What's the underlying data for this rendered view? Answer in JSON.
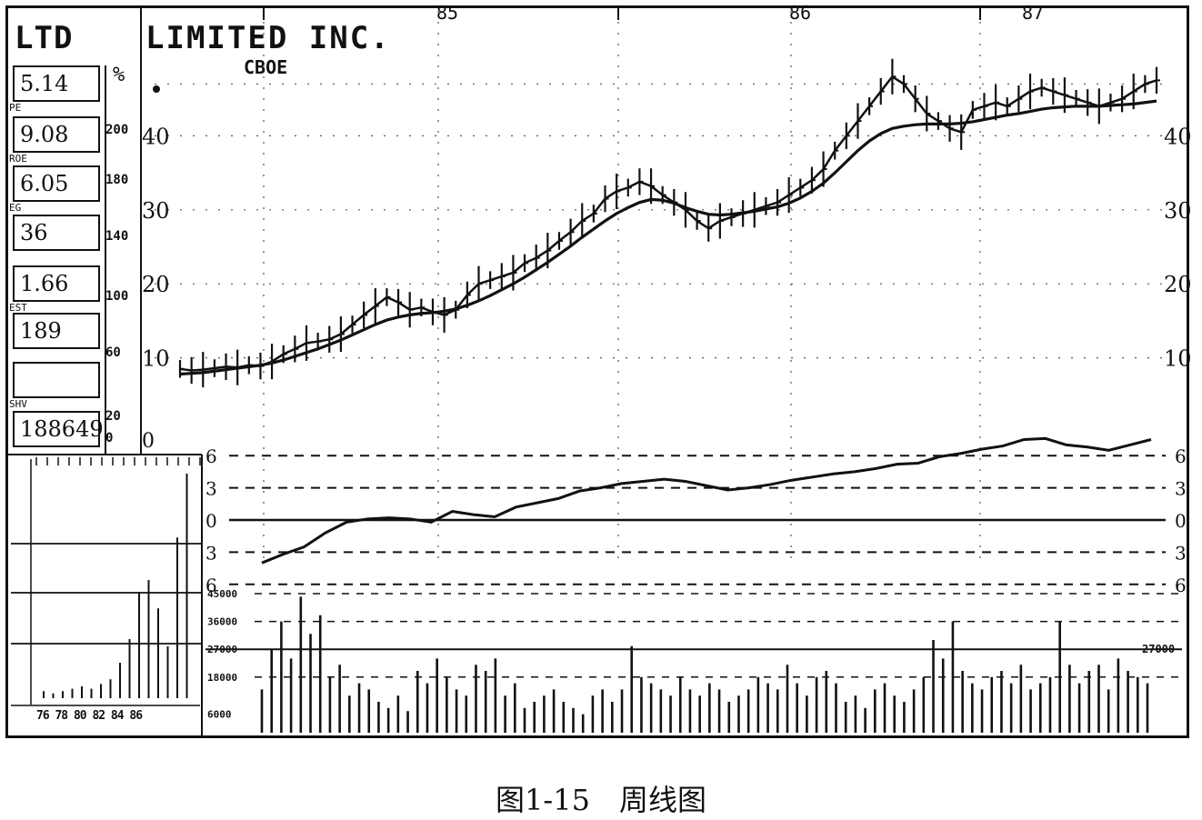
{
  "header": {
    "ticker": "LTD",
    "company": "LIMITED INC.",
    "exchange": "CBOE",
    "pct_symbol": "%"
  },
  "stats": [
    {
      "value": "5.14",
      "tag": "PE"
    },
    {
      "value": "9.08",
      "tag": "ROE"
    },
    {
      "value": "6.05",
      "tag": "EG"
    },
    {
      "value": "36",
      "tag": ""
    },
    {
      "value": "1.66",
      "tag": "EST"
    },
    {
      "value": "189",
      "tag": ""
    },
    {
      "value": "",
      "tag": "SHV"
    },
    {
      "value": "188649",
      "tag": ""
    }
  ],
  "left_scale": [
    "200",
    "180",
    "140",
    "100",
    "60",
    "20",
    "0"
  ],
  "inset_years": "76 78 80 82 84 86",
  "x_year_labels": [
    "85",
    "86",
    "87"
  ],
  "caption": "图1-15　周线图",
  "chart_data": [
    {
      "type": "line",
      "title": "",
      "xlabel": "",
      "ylabel": "",
      "ylim": [
        0,
        50
      ],
      "y_ticks": [
        10,
        20,
        30,
        40
      ],
      "grid": true,
      "x_labels": [
        "85",
        "86",
        "87"
      ],
      "x": [
        0,
        2,
        4,
        6,
        8,
        10,
        12,
        14,
        16,
        18,
        20,
        22,
        24,
        26,
        28,
        30,
        32,
        34,
        36,
        38,
        40,
        42,
        44,
        46,
        48,
        50,
        52,
        54,
        56,
        58,
        60,
        62,
        64,
        66,
        68,
        70,
        72,
        74,
        76,
        78,
        80,
        82,
        84,
        86,
        88,
        90,
        92,
        94,
        96,
        98,
        100,
        102,
        104,
        106,
        108,
        110,
        112,
        114,
        116,
        118,
        120,
        122,
        124,
        126,
        128,
        130,
        132,
        134,
        136,
        138,
        140,
        142,
        144,
        146,
        148,
        150,
        152,
        154,
        156,
        158,
        160,
        162,
        164,
        166,
        168,
        170
      ],
      "series": [
        {
          "values": [
            8.5,
            8.3,
            8.4,
            8.6,
            8.8,
            8.7,
            9.0,
            8.9,
            9.5,
            10.5,
            11.2,
            12.0,
            12.2,
            12.5,
            13.2,
            14.5,
            15.8,
            17.0,
            18.2,
            17.5,
            16.5,
            16.8,
            16.2,
            15.8,
            16.5,
            18.5,
            20.0,
            20.5,
            21.0,
            21.5,
            22.8,
            23.5,
            24.5,
            25.8,
            27.0,
            28.5,
            29.5,
            31.5,
            32.5,
            33.0,
            33.8,
            33.2,
            32.0,
            31.0,
            30.0,
            28.5,
            27.5,
            28.5,
            29.0,
            29.5,
            30.0,
            30.5,
            31.0,
            32.0,
            33.0,
            34.0,
            35.5,
            38.0,
            40.0,
            42.0,
            44.0,
            46.0,
            48.0,
            47.0,
            45.0,
            43.0,
            42.0,
            41.0,
            40.5,
            43.5,
            44.0,
            44.5,
            44.0,
            45.0,
            46.0,
            46.5,
            46.0,
            45.5,
            45.0,
            44.5,
            44.0,
            44.5,
            45.0,
            46.0,
            47.0,
            47.5
          ]
        },
        {
          "values": [
            7.8,
            7.9,
            8.0,
            8.2,
            8.4,
            8.6,
            8.8,
            9.0,
            9.3,
            9.7,
            10.2,
            10.7,
            11.2,
            11.8,
            12.4,
            13.1,
            13.8,
            14.5,
            15.1,
            15.5,
            15.8,
            16.0,
            16.1,
            16.3,
            16.6,
            17.1,
            17.7,
            18.4,
            19.2,
            20.0,
            20.9,
            21.9,
            22.9,
            24.0,
            25.1,
            26.3,
            27.4,
            28.5,
            29.5,
            30.3,
            31.0,
            31.4,
            31.3,
            30.9,
            30.3,
            29.8,
            29.4,
            29.3,
            29.4,
            29.6,
            29.8,
            30.1,
            30.4,
            30.9,
            31.6,
            32.5,
            33.6,
            35.0,
            36.5,
            38.0,
            39.3,
            40.3,
            41.0,
            41.3,
            41.5,
            41.6,
            41.6,
            41.6,
            41.7,
            41.9,
            42.2,
            42.5,
            42.8,
            43.0,
            43.3,
            43.6,
            43.8,
            43.9,
            44.0,
            44.0,
            44.0,
            44.1,
            44.2,
            44.3,
            44.5,
            44.7
          ]
        }
      ]
    },
    {
      "type": "line",
      "title": "",
      "ylim": [
        -6,
        6
      ],
      "y_ticks": [
        6,
        3,
        0,
        -3,
        -6
      ],
      "y_tick_labels": [
        "6",
        "3",
        "0",
        "3",
        "6"
      ],
      "x": [
        0,
        4,
        8,
        12,
        16,
        20,
        24,
        28,
        32,
        36,
        40,
        44,
        48,
        52,
        56,
        60,
        64,
        68,
        72,
        76,
        80,
        84,
        88,
        92,
        96,
        100,
        104,
        108,
        112,
        116,
        120,
        124,
        128,
        132,
        136,
        140,
        144,
        148,
        152,
        156,
        160,
        164,
        168
      ],
      "series": [
        {
          "values": [
            -4.0,
            -3.2,
            -2.5,
            -1.2,
            -0.2,
            0.1,
            0.2,
            0.1,
            -0.2,
            0.8,
            0.5,
            0.3,
            1.2,
            1.6,
            2.0,
            2.7,
            3.0,
            3.4,
            3.6,
            3.8,
            3.6,
            3.2,
            2.8,
            3.0,
            3.3,
            3.7,
            4.0,
            4.3,
            4.5,
            4.8,
            5.2,
            5.3,
            5.9,
            6.2,
            6.6,
            6.9,
            7.5,
            7.6,
            7.0,
            6.8,
            6.5,
            7.0,
            7.5
          ]
        }
      ]
    },
    {
      "type": "bar",
      "title": "",
      "ylabel": "",
      "y_ticks": [
        6000,
        18000,
        27000,
        36000,
        45000
      ],
      "y_tick_labels": [
        "6000",
        "18000",
        "27000",
        "36000",
        "45000"
      ],
      "right_label": "27000",
      "ylim": [
        0,
        50000
      ],
      "values": [
        14000,
        27000,
        36000,
        24000,
        44000,
        32000,
        38000,
        18000,
        22000,
        12000,
        16000,
        14000,
        10000,
        8000,
        12000,
        7000,
        20000,
        16000,
        24000,
        18000,
        14000,
        12000,
        22000,
        20000,
        24000,
        12000,
        16000,
        8000,
        10000,
        12000,
        14000,
        10000,
        8000,
        6000,
        12000,
        14000,
        10000,
        14000,
        28000,
        18000,
        16000,
        14000,
        12000,
        18000,
        14000,
        12000,
        16000,
        14000,
        10000,
        12000,
        14000,
        18000,
        16000,
        14000,
        22000,
        16000,
        12000,
        18000,
        20000,
        16000,
        10000,
        12000,
        8000,
        14000,
        16000,
        12000,
        10000,
        14000,
        18000,
        30000,
        24000,
        36000,
        20000,
        16000,
        14000,
        18000,
        20000,
        16000,
        22000,
        14000,
        16000,
        18000,
        36000,
        22000,
        16000,
        20000,
        22000,
        14000,
        24000,
        20000,
        18000,
        16000
      ]
    }
  ],
  "inset_chart": {
    "type": "bar",
    "values": [
      0.3,
      0.2,
      0.3,
      0.4,
      0.5,
      0.4,
      0.6,
      0.8,
      1.5,
      2.5,
      4.5,
      5.0,
      3.8,
      2.2,
      6.8,
      9.5
    ]
  }
}
